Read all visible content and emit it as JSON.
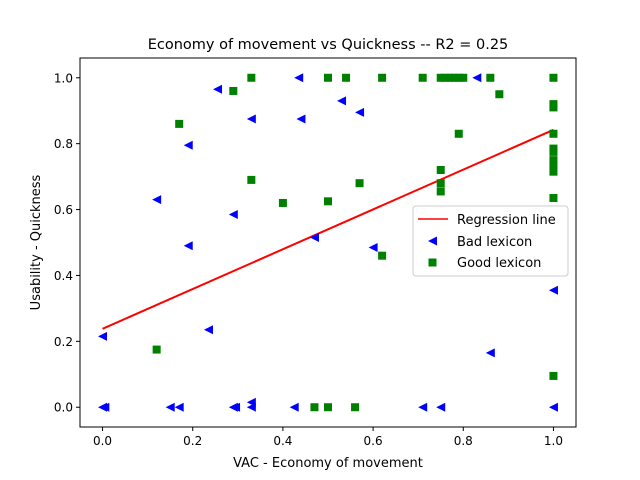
{
  "chart_data": {
    "type": "scatter",
    "title": "Economy of movement  vs  Quickness -- R2 = 0.25",
    "xlabel": "VAC - Economy of movement",
    "ylabel": "Usability - Quickness",
    "xlim": [
      -0.05,
      1.05
    ],
    "ylim": [
      -0.06,
      1.06
    ],
    "xticks": [
      "0.0",
      "0.2",
      "0.4",
      "0.6",
      "0.8",
      "1.0"
    ],
    "yticks": [
      "0.0",
      "0.2",
      "0.4",
      "0.6",
      "0.8",
      "1.0"
    ],
    "grid": false,
    "legend": {
      "placement": "center-right",
      "entries": [
        "Regression line",
        "Bad lexicon",
        "Good lexicon"
      ]
    },
    "regression": {
      "name": "Regression line",
      "color": "#ff0000",
      "x": [
        0.0,
        1.0
      ],
      "y": [
        0.238,
        0.842
      ]
    },
    "series": [
      {
        "name": "Bad lexicon",
        "marker": "triangle-left",
        "color": "#0000ff",
        "points": [
          [
            0.0,
            0.0
          ],
          [
            0.005,
            0.0
          ],
          [
            0.0,
            0.215
          ],
          [
            0.12,
            0.63
          ],
          [
            0.15,
            0.0
          ],
          [
            0.17,
            0.0
          ],
          [
            0.19,
            0.795
          ],
          [
            0.19,
            0.49
          ],
          [
            0.235,
            0.235
          ],
          [
            0.255,
            0.965
          ],
          [
            0.29,
            0.585
          ],
          [
            0.29,
            0.0
          ],
          [
            0.295,
            0.0
          ],
          [
            0.33,
            0.875
          ],
          [
            0.33,
            0.0
          ],
          [
            0.33,
            0.015
          ],
          [
            0.425,
            0.0
          ],
          [
            0.435,
            1.0
          ],
          [
            0.44,
            0.875
          ],
          [
            0.47,
            0.515
          ],
          [
            0.53,
            0.93
          ],
          [
            0.57,
            0.895
          ],
          [
            0.6,
            0.485
          ],
          [
            0.71,
            0.0
          ],
          [
            0.75,
            0.0
          ],
          [
            0.83,
            1.0
          ],
          [
            0.86,
            0.165
          ],
          [
            1.0,
            0.355
          ],
          [
            1.0,
            0.0
          ]
        ]
      },
      {
        "name": "Good lexicon",
        "marker": "square",
        "color": "#008000",
        "points": [
          [
            0.12,
            0.175
          ],
          [
            0.17,
            0.86
          ],
          [
            0.29,
            0.96
          ],
          [
            0.33,
            1.0
          ],
          [
            0.33,
            0.69
          ],
          [
            0.4,
            0.62
          ],
          [
            0.47,
            0.0
          ],
          [
            0.5,
            0.0
          ],
          [
            0.5,
            1.0
          ],
          [
            0.5,
            0.625
          ],
          [
            0.54,
            1.0
          ],
          [
            0.56,
            0.0
          ],
          [
            0.57,
            0.68
          ],
          [
            0.62,
            1.0
          ],
          [
            0.62,
            0.46
          ],
          [
            0.71,
            1.0
          ],
          [
            0.75,
            1.0
          ],
          [
            0.76,
            1.0
          ],
          [
            0.77,
            1.0
          ],
          [
            0.78,
            1.0
          ],
          [
            0.79,
            1.0
          ],
          [
            0.8,
            1.0
          ],
          [
            0.75,
            0.72
          ],
          [
            0.75,
            0.68
          ],
          [
            0.75,
            0.655
          ],
          [
            0.79,
            0.83
          ],
          [
            0.86,
            1.0
          ],
          [
            0.88,
            0.95
          ],
          [
            1.0,
            1.0
          ],
          [
            1.0,
            0.92
          ],
          [
            1.0,
            0.91
          ],
          [
            1.0,
            0.83
          ],
          [
            1.0,
            0.785
          ],
          [
            1.0,
            0.775
          ],
          [
            1.0,
            0.75
          ],
          [
            1.0,
            0.735
          ],
          [
            1.0,
            0.715
          ],
          [
            1.0,
            0.635
          ],
          [
            1.0,
            0.095
          ]
        ]
      }
    ]
  }
}
